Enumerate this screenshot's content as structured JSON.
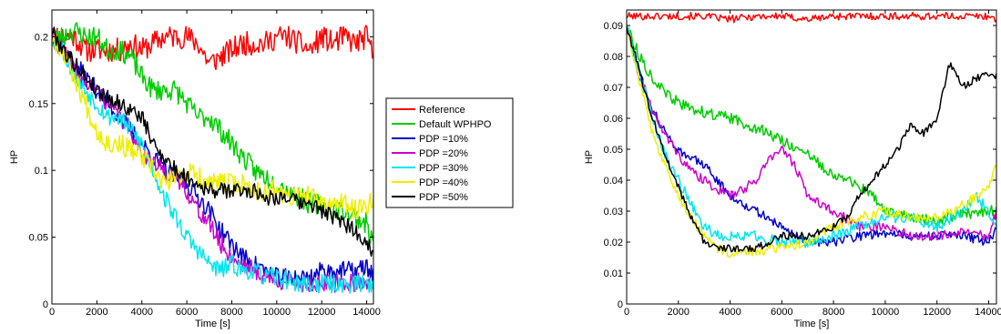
{
  "chart_data": [
    {
      "type": "line",
      "xlabel": "Time [s]",
      "ylabel": "HP",
      "xlim": [
        0,
        14300
      ],
      "ylim": [
        0,
        0.22
      ],
      "xticks": [
        0,
        2000,
        4000,
        6000,
        8000,
        10000,
        12000,
        14000
      ],
      "yticks": [
        0,
        0.05,
        0.1,
        0.15,
        0.2
      ],
      "ytick_labels": [
        "0",
        "0.05",
        "0.1",
        "0.15",
        "0.2"
      ],
      "grid": false,
      "legend": "outside-right",
      "series": [
        {
          "name": "Reference",
          "color": "#ff0000",
          "noise": 0.009,
          "seed": 11,
          "x": [
            0,
            500,
            1000,
            1500,
            2000,
            2500,
            3000,
            3500,
            4000,
            4500,
            5000,
            5500,
            6000,
            6500,
            7000,
            7500,
            8000,
            8500,
            9000,
            9500,
            10000,
            10500,
            11000,
            11500,
            12000,
            12500,
            13000,
            13500,
            14000,
            14300
          ],
          "y": [
            0.2,
            0.2,
            0.2,
            0.19,
            0.19,
            0.19,
            0.19,
            0.195,
            0.19,
            0.195,
            0.2,
            0.2,
            0.2,
            0.195,
            0.18,
            0.185,
            0.19,
            0.195,
            0.195,
            0.195,
            0.2,
            0.2,
            0.195,
            0.19,
            0.2,
            0.195,
            0.2,
            0.195,
            0.2,
            0.185
          ]
        },
        {
          "name": "Default WPHPO",
          "color": "#00cc00",
          "noise": 0.008,
          "seed": 23,
          "x": [
            0,
            500,
            1000,
            1500,
            2000,
            2500,
            3000,
            3500,
            4000,
            4500,
            5000,
            5500,
            6000,
            6500,
            7000,
            7500,
            8000,
            8500,
            9000,
            9500,
            10000,
            10500,
            11000,
            11500,
            12000,
            12500,
            13000,
            13500,
            14000,
            14300
          ],
          "y": [
            0.2,
            0.2,
            0.205,
            0.2,
            0.2,
            0.19,
            0.19,
            0.185,
            0.17,
            0.16,
            0.16,
            0.16,
            0.15,
            0.14,
            0.14,
            0.13,
            0.12,
            0.11,
            0.1,
            0.095,
            0.09,
            0.085,
            0.08,
            0.075,
            0.075,
            0.07,
            0.07,
            0.065,
            0.06,
            0.045
          ]
        },
        {
          "name": "PDP =10%",
          "color": "#0000cc",
          "noise": 0.007,
          "seed": 37,
          "x": [
            0,
            500,
            1000,
            1500,
            2000,
            2500,
            3000,
            3500,
            4000,
            4500,
            5000,
            5500,
            6000,
            6500,
            7000,
            7500,
            8000,
            8500,
            9000,
            9500,
            10000,
            10500,
            11000,
            11500,
            12000,
            12500,
            13000,
            13500,
            14000,
            14300
          ],
          "y": [
            0.2,
            0.19,
            0.18,
            0.17,
            0.16,
            0.15,
            0.14,
            0.13,
            0.12,
            0.11,
            0.1,
            0.095,
            0.09,
            0.08,
            0.07,
            0.055,
            0.045,
            0.035,
            0.03,
            0.025,
            0.02,
            0.02,
            0.02,
            0.02,
            0.025,
            0.025,
            0.025,
            0.025,
            0.028,
            0.022
          ]
        },
        {
          "name": "PDP =20%",
          "color": "#cc00cc",
          "noise": 0.007,
          "seed": 41,
          "x": [
            0,
            500,
            1000,
            1500,
            2000,
            2500,
            3000,
            3500,
            4000,
            4500,
            5000,
            5500,
            6000,
            6500,
            7000,
            7500,
            8000,
            8500,
            9000,
            9500,
            10000,
            10500,
            11000,
            11500,
            12000,
            12500,
            13000,
            13500,
            14000,
            14300
          ],
          "y": [
            0.2,
            0.19,
            0.175,
            0.165,
            0.16,
            0.15,
            0.14,
            0.13,
            0.115,
            0.105,
            0.1,
            0.095,
            0.085,
            0.07,
            0.06,
            0.045,
            0.035,
            0.03,
            0.025,
            0.02,
            0.018,
            0.016,
            0.015,
            0.015,
            0.015,
            0.015,
            0.016,
            0.016,
            0.017,
            0.016
          ]
        },
        {
          "name": "PDP =30%",
          "color": "#00e5ee",
          "noise": 0.007,
          "seed": 53,
          "x": [
            0,
            500,
            1000,
            1500,
            2000,
            2500,
            3000,
            3500,
            4000,
            4500,
            5000,
            5500,
            6000,
            6500,
            7000,
            7500,
            8000,
            8500,
            9000,
            9500,
            10000,
            10500,
            11000,
            11500,
            12000,
            12500,
            13000,
            13500,
            14000,
            14300
          ],
          "y": [
            0.2,
            0.19,
            0.17,
            0.16,
            0.15,
            0.14,
            0.14,
            0.13,
            0.12,
            0.1,
            0.08,
            0.065,
            0.05,
            0.04,
            0.03,
            0.025,
            0.03,
            0.025,
            0.025,
            0.02,
            0.02,
            0.018,
            0.015,
            0.015,
            0.015,
            0.015,
            0.015,
            0.015,
            0.015,
            0.015
          ]
        },
        {
          "name": "PDP =40%",
          "color": "#eeee00",
          "noise": 0.008,
          "seed": 67,
          "x": [
            0,
            500,
            1000,
            1500,
            2000,
            2500,
            3000,
            3500,
            4000,
            4500,
            5000,
            5500,
            6000,
            6500,
            7000,
            7500,
            8000,
            8500,
            9000,
            9500,
            10000,
            10500,
            11000,
            11500,
            12000,
            12500,
            13000,
            13500,
            14000,
            14300
          ],
          "y": [
            0.2,
            0.19,
            0.17,
            0.15,
            0.13,
            0.12,
            0.12,
            0.115,
            0.11,
            0.1,
            0.09,
            0.095,
            0.1,
            0.095,
            0.09,
            0.09,
            0.09,
            0.09,
            0.085,
            0.085,
            0.085,
            0.08,
            0.08,
            0.08,
            0.075,
            0.075,
            0.075,
            0.07,
            0.075,
            0.08
          ]
        },
        {
          "name": "PDP =50%",
          "color": "#000000",
          "noise": 0.006,
          "seed": 79,
          "x": [
            0,
            500,
            1000,
            1500,
            2000,
            2500,
            3000,
            3500,
            4000,
            4500,
            5000,
            5500,
            6000,
            6500,
            7000,
            7500,
            8000,
            8500,
            9000,
            9500,
            10000,
            10500,
            11000,
            11500,
            12000,
            12500,
            13000,
            13500,
            14000,
            14300
          ],
          "y": [
            0.205,
            0.19,
            0.18,
            0.17,
            0.16,
            0.155,
            0.15,
            0.145,
            0.14,
            0.12,
            0.11,
            0.1,
            0.095,
            0.09,
            0.085,
            0.085,
            0.085,
            0.085,
            0.085,
            0.08,
            0.08,
            0.08,
            0.075,
            0.075,
            0.07,
            0.065,
            0.06,
            0.055,
            0.045,
            0.04
          ]
        }
      ]
    },
    {
      "type": "line",
      "xlabel": "Time [s]",
      "ylabel": "HP",
      "xlim": [
        0,
        14300
      ],
      "ylim": [
        0,
        0.095
      ],
      "xticks": [
        0,
        2000,
        4000,
        6000,
        8000,
        10000,
        12000,
        14000
      ],
      "yticks": [
        0,
        0.01,
        0.02,
        0.03,
        0.04,
        0.05,
        0.06,
        0.07,
        0.08,
        0.09
      ],
      "ytick_labels": [
        "0",
        "0.01",
        "0.02",
        "0.03",
        "0.04",
        "0.05",
        "0.06",
        "0.07",
        "0.08",
        "0.09"
      ],
      "grid": false,
      "legend": "none",
      "series": [
        {
          "color": "#ff0000",
          "noise": 0.0012,
          "seed": 101,
          "x": [
            0,
            1000,
            2000,
            3000,
            4000,
            5000,
            6000,
            7000,
            8000,
            9000,
            10000,
            11000,
            12000,
            13000,
            14000,
            14300
          ],
          "y": [
            0.093,
            0.093,
            0.093,
            0.093,
            0.092,
            0.093,
            0.093,
            0.092,
            0.093,
            0.093,
            0.093,
            0.093,
            0.093,
            0.093,
            0.093,
            0.092
          ]
        },
        {
          "color": "#00cc00",
          "noise": 0.0018,
          "seed": 113,
          "x": [
            0,
            500,
            1000,
            1500,
            2000,
            2500,
            3000,
            3500,
            4000,
            5000,
            6000,
            7000,
            8000,
            8500,
            9000,
            9500,
            10000,
            11000,
            12000,
            13000,
            14000,
            14300
          ],
          "y": [
            0.09,
            0.08,
            0.073,
            0.068,
            0.065,
            0.063,
            0.062,
            0.061,
            0.06,
            0.057,
            0.053,
            0.048,
            0.042,
            0.04,
            0.038,
            0.035,
            0.03,
            0.028,
            0.027,
            0.029,
            0.03,
            0.03
          ]
        },
        {
          "color": "#0000cc",
          "noise": 0.0015,
          "seed": 127,
          "x": [
            0,
            500,
            1000,
            1500,
            2000,
            2500,
            3000,
            3500,
            4000,
            5000,
            6000,
            7000,
            8000,
            9000,
            10000,
            11000,
            12000,
            13000,
            14000,
            14300
          ],
          "y": [
            0.09,
            0.075,
            0.063,
            0.055,
            0.05,
            0.047,
            0.045,
            0.04,
            0.035,
            0.03,
            0.025,
            0.02,
            0.02,
            0.022,
            0.023,
            0.022,
            0.022,
            0.022,
            0.02,
            0.024
          ]
        },
        {
          "color": "#cc00cc",
          "noise": 0.0015,
          "seed": 131,
          "x": [
            0,
            500,
            1000,
            1500,
            2000,
            2500,
            3000,
            3500,
            4000,
            4500,
            5000,
            5500,
            6000,
            6500,
            7000,
            8000,
            9000,
            10000,
            11000,
            12000,
            13000,
            14000,
            14300
          ],
          "y": [
            0.09,
            0.073,
            0.063,
            0.055,
            0.048,
            0.043,
            0.04,
            0.037,
            0.035,
            0.037,
            0.04,
            0.047,
            0.05,
            0.045,
            0.035,
            0.03,
            0.025,
            0.025,
            0.022,
            0.022,
            0.023,
            0.022,
            0.03
          ]
        },
        {
          "color": "#00e5ee",
          "noise": 0.0018,
          "seed": 149,
          "x": [
            0,
            500,
            1000,
            1500,
            2000,
            2500,
            3000,
            3500,
            4000,
            5000,
            6000,
            7000,
            8000,
            9000,
            10000,
            11000,
            12000,
            13000,
            13500,
            14000,
            14300
          ],
          "y": [
            0.09,
            0.075,
            0.06,
            0.048,
            0.04,
            0.032,
            0.025,
            0.022,
            0.022,
            0.022,
            0.02,
            0.02,
            0.022,
            0.025,
            0.028,
            0.028,
            0.025,
            0.03,
            0.035,
            0.03,
            0.025
          ]
        },
        {
          "color": "#eeee00",
          "noise": 0.0015,
          "seed": 157,
          "x": [
            0,
            500,
            1000,
            1500,
            2000,
            2500,
            3000,
            3500,
            4000,
            5000,
            6000,
            7000,
            8000,
            9000,
            10000,
            11000,
            12000,
            13000,
            14000,
            14300
          ],
          "y": [
            0.09,
            0.072,
            0.055,
            0.045,
            0.035,
            0.028,
            0.022,
            0.018,
            0.016,
            0.017,
            0.018,
            0.02,
            0.025,
            0.028,
            0.03,
            0.028,
            0.028,
            0.032,
            0.037,
            0.045
          ]
        },
        {
          "color": "#000000",
          "noise": 0.0012,
          "seed": 163,
          "x": [
            0,
            500,
            1000,
            1500,
            2000,
            2500,
            3000,
            3500,
            4000,
            5000,
            6000,
            7000,
            8000,
            8500,
            9000,
            9500,
            10000,
            10500,
            11000,
            11500,
            12000,
            12500,
            13000,
            13500,
            14000,
            14300
          ],
          "y": [
            0.09,
            0.075,
            0.06,
            0.048,
            0.038,
            0.028,
            0.02,
            0.018,
            0.018,
            0.018,
            0.022,
            0.022,
            0.025,
            0.028,
            0.035,
            0.04,
            0.045,
            0.05,
            0.058,
            0.055,
            0.06,
            0.078,
            0.07,
            0.073,
            0.074,
            0.074
          ]
        }
      ]
    }
  ]
}
